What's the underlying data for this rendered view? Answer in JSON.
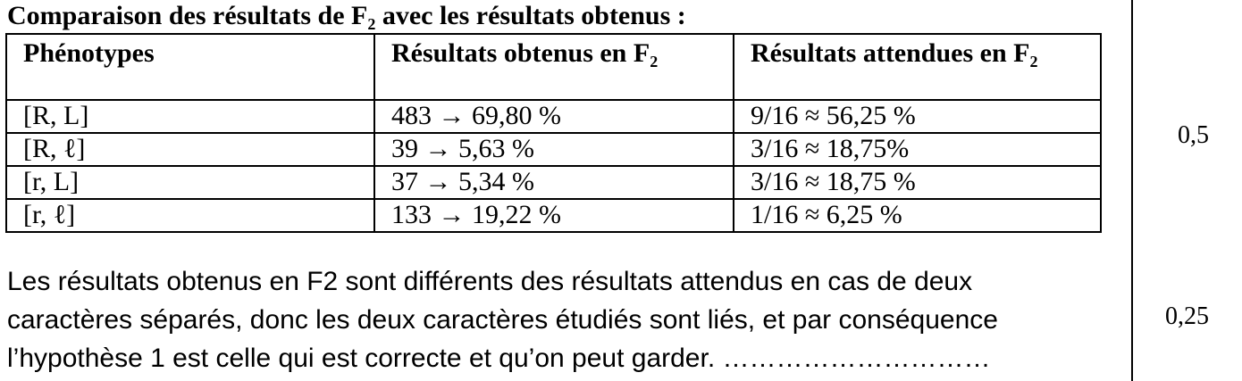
{
  "title": "Comparaison des résultats de F₂ avec les résultats obtenus :",
  "table": {
    "headers": [
      "Phénotypes",
      "Résultats obtenus en F₂",
      "Résultats attendues en F₂"
    ],
    "rows": [
      [
        "[R, L]",
        "483 →  69,80 %",
        "9/16 ≈ 56,25 %"
      ],
      [
        "[R, ℓ]",
        "39 →  5,63 %",
        "3/16 ≈ 18,75%"
      ],
      [
        "[r, L]",
        "37 →  5,34 %",
        "3/16 ≈ 18,75 %"
      ],
      [
        "[r, ℓ]",
        "133  →  19,22 %",
        "1/16 ≈ 6,25 %"
      ]
    ]
  },
  "conclusion": {
    "lines": [
      "Les résultats obtenus en F2 sont différents des résultats attendus en cas de deux",
      "caractères séparés, donc les deux caractères étudiés sont liés, et par conséquence",
      "l’hypothèse 1 est celle qui est correcte et qu’on peut garder. …………………………"
    ]
  },
  "scores": [
    "0,5",
    "0,25"
  ]
}
